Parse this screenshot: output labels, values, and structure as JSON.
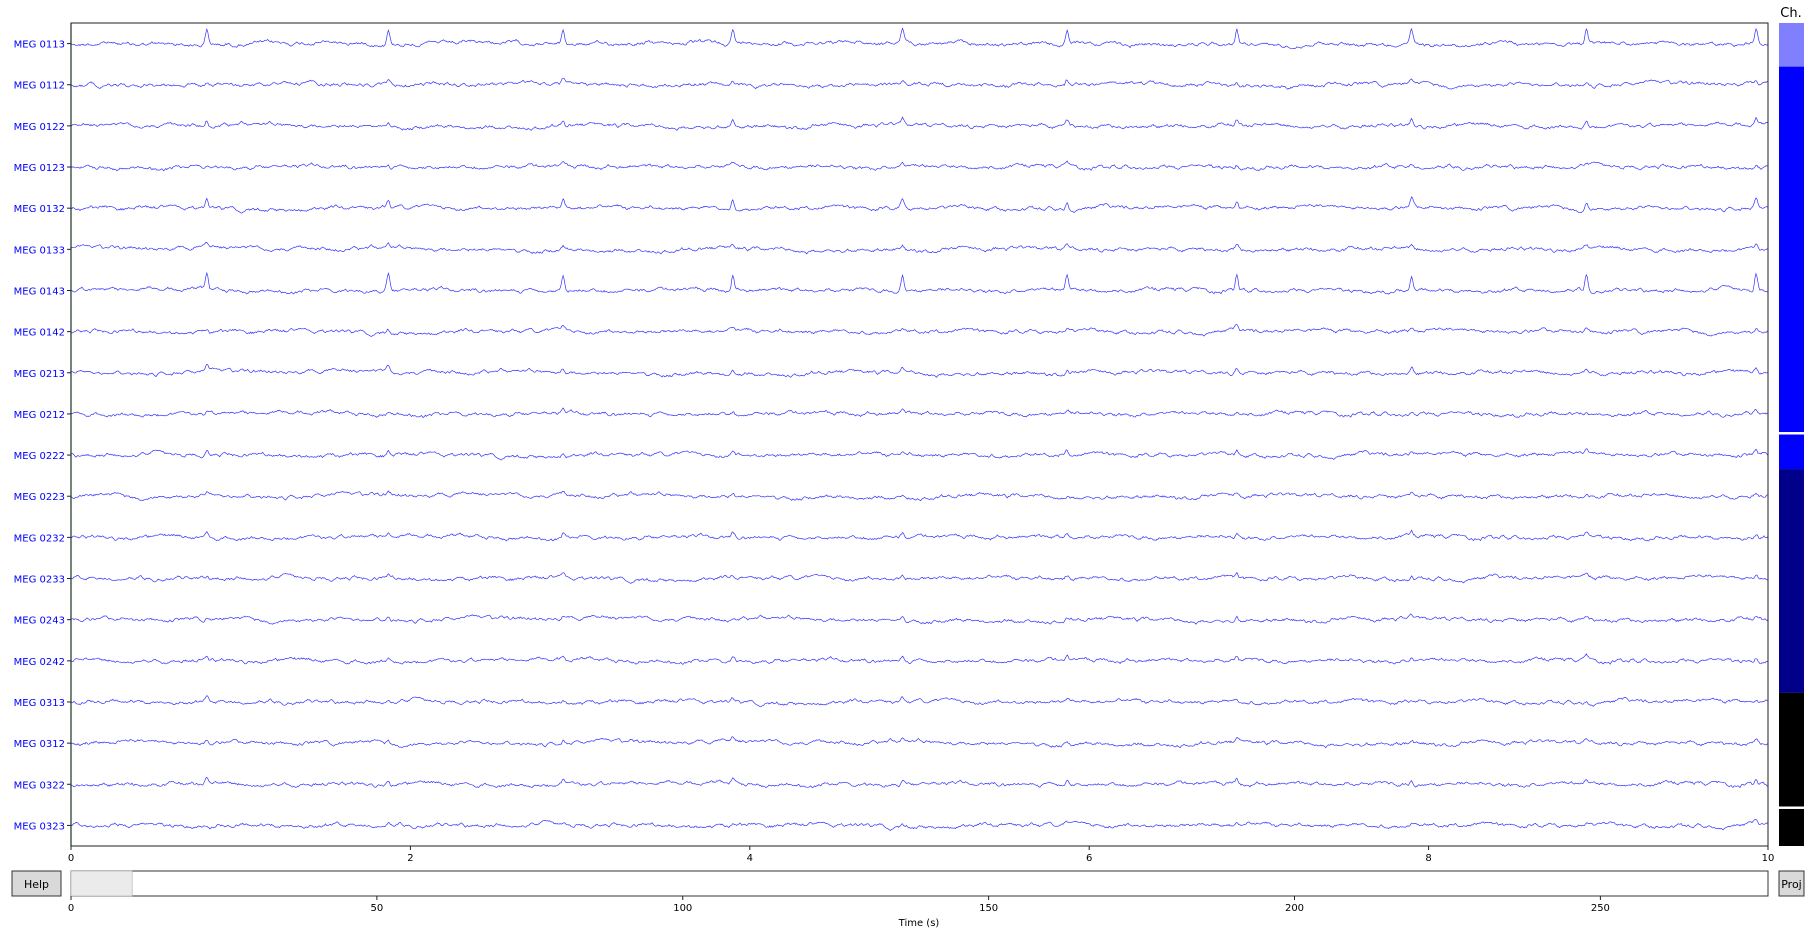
{
  "chart_data": {
    "type": "line",
    "xlim": [
      0,
      10
    ],
    "x_ticks": [
      "0",
      "2",
      "4",
      "6",
      "8",
      "10"
    ],
    "grid": false,
    "trace_color": "#0000ff",
    "first_sample_marker_color": "#008000",
    "series": [
      {
        "name": "MEG 0113"
      },
      {
        "name": "MEG 0112"
      },
      {
        "name": "MEG 0122"
      },
      {
        "name": "MEG 0123"
      },
      {
        "name": "MEG 0132"
      },
      {
        "name": "MEG 0133"
      },
      {
        "name": "MEG 0143"
      },
      {
        "name": "MEG 0142"
      },
      {
        "name": "MEG 0213"
      },
      {
        "name": "MEG 0212"
      },
      {
        "name": "MEG 0222"
      },
      {
        "name": "MEG 0223"
      },
      {
        "name": "MEG 0232"
      },
      {
        "name": "MEG 0233"
      },
      {
        "name": "MEG 0243"
      },
      {
        "name": "MEG 0242"
      },
      {
        "name": "MEG 0313"
      },
      {
        "name": "MEG 0312"
      },
      {
        "name": "MEG 0322"
      },
      {
        "name": "MEG 0323"
      }
    ]
  },
  "channel_bar": {
    "title": "Ch.",
    "segments": [
      {
        "color": "#8080ff",
        "from": 0,
        "to": 0.053
      },
      {
        "color": "#0000ff",
        "from": 0.053,
        "to": 0.497
      },
      {
        "color": "#0000ff",
        "from": 0.5,
        "to": 0.542
      },
      {
        "color": "#00008b",
        "from": 0.542,
        "to": 0.814
      },
      {
        "color": "#000000",
        "from": 0.814,
        "to": 0.952
      },
      {
        "color": "#000000",
        "from": 0.955,
        "to": 1.0
      }
    ]
  },
  "scrollbar": {
    "xlim": [
      0,
      277.4
    ],
    "view_start": 0,
    "view_end": 10,
    "ticks": [
      "0",
      "50",
      "100",
      "150",
      "200",
      "250"
    ],
    "xlabel": "Time (s)"
  },
  "buttons": {
    "help": "Help",
    "proj": "Proj"
  }
}
